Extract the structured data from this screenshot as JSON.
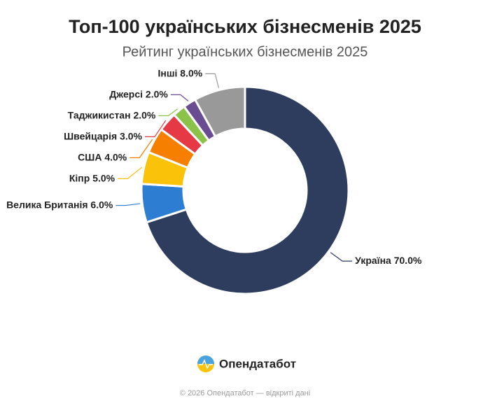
{
  "chart_data": {
    "type": "donut",
    "title": "Топ-100 українських бізнесменів 2025",
    "subtitle": "Рейтинг українських бізнесменів 2025",
    "categories": [
      "Україна",
      "Велика Британія",
      "Кіпр",
      "США",
      "Швейцарія",
      "Таджикистан",
      "Джерсі",
      "Інші"
    ],
    "values": [
      70,
      6,
      5,
      4,
      3,
      2,
      2,
      8
    ],
    "value_labels": [
      "70.0%",
      "6.0%",
      "5.0%",
      "4.0%",
      "3.0%",
      "2.0%",
      "2.0%",
      "8.0%"
    ],
    "colors": [
      "#2e3d5e",
      "#2d7dd2",
      "#fbc20a",
      "#f77f00",
      "#e63946",
      "#8bc34a",
      "#6a4c93",
      "#999999"
    ]
  },
  "brand": "Опендатабот",
  "copyright": "© 2026 Опендатабот — відкриті дані"
}
